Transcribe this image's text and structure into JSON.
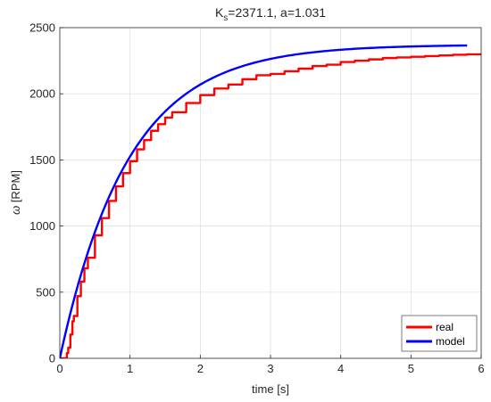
{
  "chart_data": {
    "type": "line",
    "title_main": "K",
    "title_sub": "s",
    "title_rest": "=2371.1, a=1.031",
    "xlabel": "time [s]",
    "ylabel_symbol": "ω",
    "ylabel_unit": " [RPM]",
    "xlim": [
      0,
      6
    ],
    "ylim": [
      0,
      2500
    ],
    "x_ticks": [
      "0",
      "1",
      "2",
      "3",
      "4",
      "5",
      "6"
    ],
    "y_ticks": [
      "0",
      "500",
      "1000",
      "1500",
      "2000",
      "2500"
    ],
    "grid": true,
    "legend_position": "bottom-right",
    "series": [
      {
        "name": "real",
        "color": "#ff0000",
        "x": [
          0,
          0.05,
          0.1,
          0.12,
          0.15,
          0.18,
          0.2,
          0.25,
          0.3,
          0.35,
          0.4,
          0.5,
          0.6,
          0.7,
          0.8,
          0.9,
          1.0,
          1.1,
          1.2,
          1.3,
          1.4,
          1.5,
          1.6,
          1.8,
          2.0,
          2.2,
          2.4,
          2.6,
          2.8,
          3.0,
          3.2,
          3.4,
          3.6,
          3.8,
          4.0,
          4.2,
          4.4,
          4.6,
          4.8,
          5.0,
          5.2,
          5.4,
          5.6,
          5.8,
          6.0
        ],
        "y": [
          0,
          0,
          40,
          80,
          180,
          280,
          320,
          470,
          580,
          680,
          760,
          930,
          1060,
          1190,
          1300,
          1400,
          1490,
          1580,
          1650,
          1720,
          1770,
          1820,
          1860,
          1930,
          1990,
          2040,
          2070,
          2110,
          2140,
          2150,
          2170,
          2190,
          2210,
          2220,
          2240,
          2250,
          2260,
          2270,
          2275,
          2280,
          2285,
          2290,
          2295,
          2298,
          2300
        ]
      },
      {
        "name": "model",
        "color": "#0000ff",
        "K": 2371.1,
        "a": 1.031,
        "x_end": 5.8
      }
    ]
  }
}
